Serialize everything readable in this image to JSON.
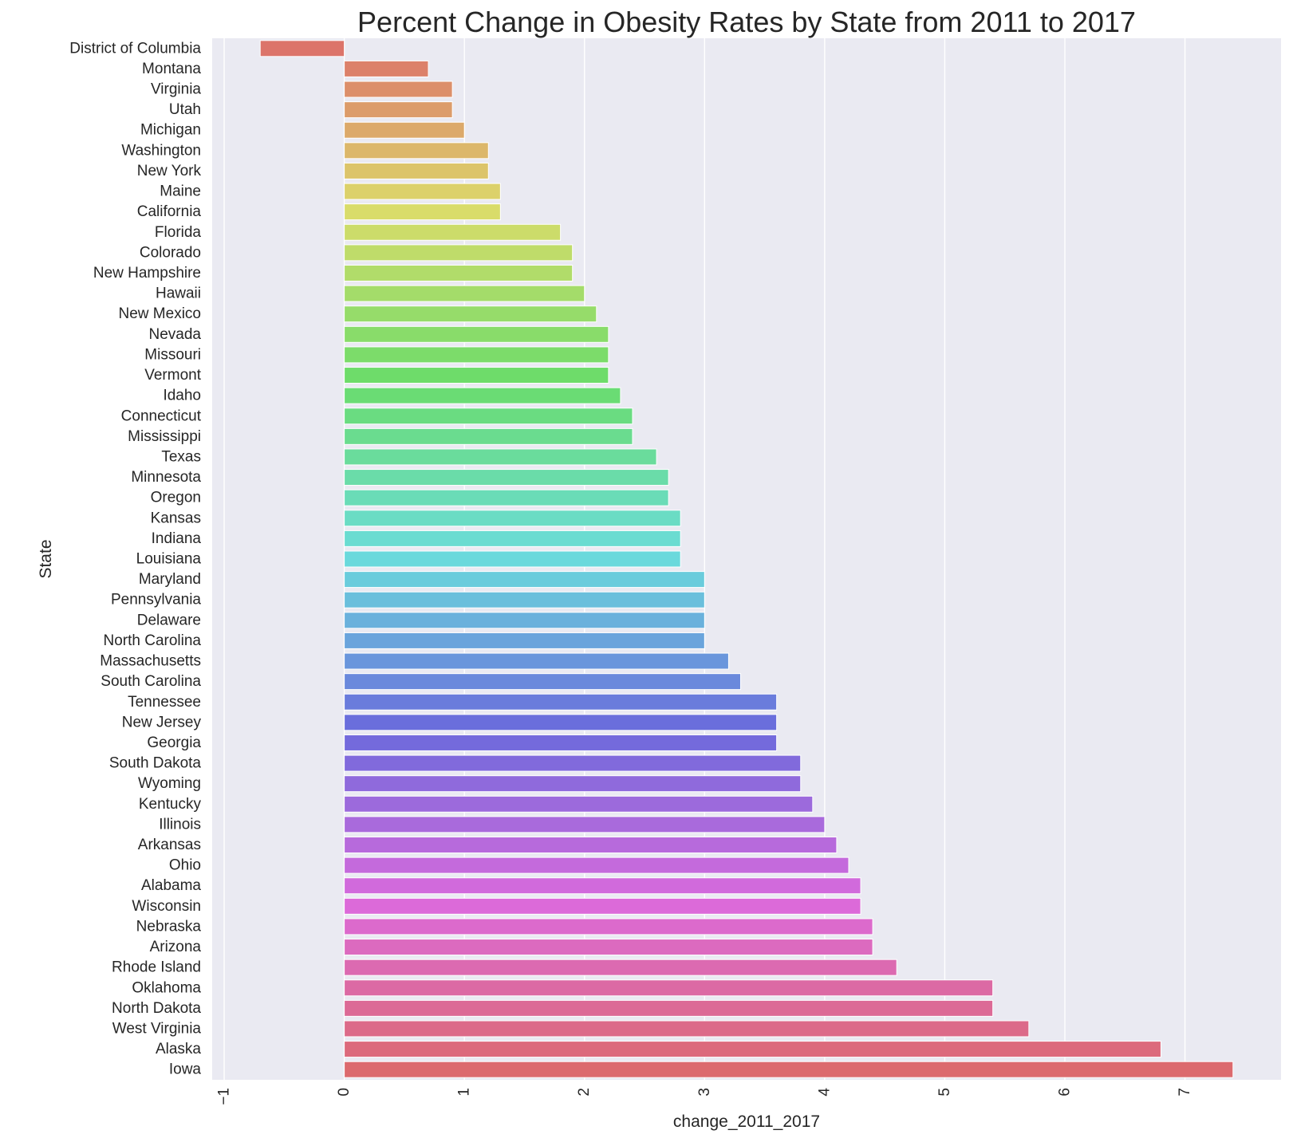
{
  "chart_data": {
    "type": "bar",
    "orientation": "horizontal",
    "title": "Percent Change in Obesity Rates by State from 2011 to 2017",
    "xlabel": "change_2011_2017",
    "ylabel": "State",
    "xlim": [
      -1.1,
      7.8
    ],
    "xticks": [
      "−1",
      "0",
      "1",
      "2",
      "3",
      "4",
      "5",
      "6",
      "7"
    ],
    "xtick_values": [
      -1,
      0,
      1,
      2,
      3,
      4,
      5,
      6,
      7
    ],
    "grid": true,
    "background": "#eaeaf2",
    "categories": [
      "District of Columbia",
      "Montana",
      "Virginia",
      "Utah",
      "Michigan",
      "Washington",
      "New York",
      "Maine",
      "California",
      "Florida",
      "Colorado",
      "New Hampshire",
      "Hawaii",
      "New Mexico",
      "Nevada",
      "Missouri",
      "Vermont",
      "Idaho",
      "Connecticut",
      "Mississippi",
      "Texas",
      "Minnesota",
      "Oregon",
      "Kansas",
      "Indiana",
      "Louisiana",
      "Maryland",
      "Pennsylvania",
      "Delaware",
      "North Carolina",
      "Massachusetts",
      "South Carolina",
      "Tennessee",
      "New Jersey",
      "Georgia",
      "South Dakota",
      "Wyoming",
      "Kentucky",
      "Illinois",
      "Arkansas",
      "Ohio",
      "Alabama",
      "Wisconsin",
      "Nebraska",
      "Arizona",
      "Rhode Island",
      "Oklahoma",
      "North Dakota",
      "West Virginia",
      "Alaska",
      "Iowa"
    ],
    "values": [
      -0.7,
      0.7,
      0.9,
      0.9,
      1.0,
      1.2,
      1.2,
      1.3,
      1.3,
      1.8,
      1.9,
      1.9,
      2.0,
      2.1,
      2.2,
      2.2,
      2.2,
      2.3,
      2.4,
      2.4,
      2.6,
      2.7,
      2.7,
      2.8,
      2.8,
      2.8,
      3.0,
      3.0,
      3.0,
      3.0,
      3.2,
      3.3,
      3.6,
      3.6,
      3.6,
      3.8,
      3.8,
      3.9,
      4.0,
      4.1,
      4.2,
      4.3,
      4.3,
      4.4,
      4.4,
      4.6,
      5.4,
      5.4,
      5.7,
      6.8,
      7.4
    ]
  }
}
